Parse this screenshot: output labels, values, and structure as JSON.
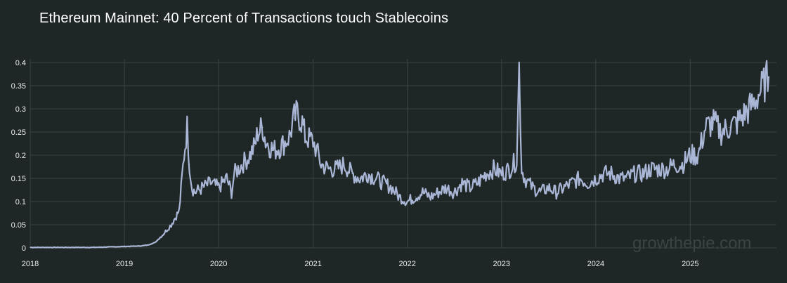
{
  "title": "Ethereum Mainnet: 40 Percent of Transactions touch Stablecoins",
  "watermark": "growthepie.com",
  "colors": {
    "background": "#1f2626",
    "line": "#a9b6d6",
    "grid": "#3a4443",
    "text": "#e8ecec"
  },
  "chart_data": {
    "type": "line",
    "title": "Ethereum Mainnet: 40 Percent of Transactions touch Stablecoins",
    "xlabel": "",
    "ylabel": "",
    "ylim": [
      0,
      0.4
    ],
    "grid": true,
    "y_ticks": [
      "0",
      "0.05",
      "0.1",
      "0.15",
      "0.2",
      "0.25",
      "0.3",
      "0.35",
      "0.4"
    ],
    "x_ticks": [
      "2018",
      "2019",
      "2020",
      "2021",
      "2022",
      "2023",
      "2024",
      "2025"
    ],
    "series": [
      {
        "x": [
          "2018-01",
          "2018-03",
          "2018-05",
          "2018-07",
          "2018-09",
          "2018-11",
          "2019-01",
          "2019-03",
          "2019-04",
          "2019-05",
          "2019-06",
          "2019-07",
          "2019-08",
          "2019-08-20",
          "2019-09-01",
          "2019-09-10",
          "2019-09-20",
          "2019-10",
          "2019-11",
          "2019-12",
          "2020-01",
          "2020-02",
          "2020-02-20",
          "2020-03",
          "2020-04",
          "2020-05",
          "2020-05-20",
          "2020-06",
          "2020-06-20",
          "2020-07",
          "2020-08",
          "2020-09",
          "2020-10",
          "2020-10-20",
          "2020-11",
          "2020-11-20",
          "2020-12",
          "2021-01",
          "2021-01-15",
          "2021-02",
          "2021-03",
          "2021-04",
          "2021-05",
          "2021-06",
          "2021-07",
          "2021-08",
          "2021-09",
          "2021-10",
          "2021-11",
          "2021-12",
          "2022-01",
          "2022-02",
          "2022-03",
          "2022-04",
          "2022-05",
          "2022-06",
          "2022-07",
          "2022-08",
          "2022-09",
          "2022-10",
          "2022-11",
          "2022-12",
          "2023-01",
          "2023-02",
          "2023-03",
          "2023-03-10",
          "2023-03-20",
          "2023-04",
          "2023-05",
          "2023-06",
          "2023-07",
          "2023-08",
          "2023-09",
          "2023-10",
          "2023-11",
          "2023-12",
          "2024-01",
          "2024-02",
          "2024-03",
          "2024-04",
          "2024-05",
          "2024-06",
          "2024-07",
          "2024-08",
          "2024-09",
          "2024-10",
          "2024-11",
          "2024-12",
          "2025-01",
          "2025-02",
          "2025-03",
          "2025-04",
          "2025-05",
          "2025-06",
          "2025-07",
          "2025-08",
          "2025-09",
          "2025-10",
          "2025-11"
        ],
        "values": [
          0.001,
          0.001,
          0.001,
          0.001,
          0.001,
          0.002,
          0.003,
          0.004,
          0.006,
          0.012,
          0.03,
          0.05,
          0.08,
          0.2,
          0.26,
          0.18,
          0.13,
          0.12,
          0.13,
          0.14,
          0.13,
          0.15,
          0.12,
          0.16,
          0.18,
          0.2,
          0.22,
          0.25,
          0.26,
          0.23,
          0.21,
          0.22,
          0.24,
          0.28,
          0.29,
          0.27,
          0.24,
          0.23,
          0.21,
          0.18,
          0.17,
          0.17,
          0.18,
          0.16,
          0.15,
          0.16,
          0.15,
          0.14,
          0.13,
          0.11,
          0.1,
          0.11,
          0.12,
          0.11,
          0.12,
          0.13,
          0.12,
          0.14,
          0.13,
          0.14,
          0.16,
          0.17,
          0.16,
          0.17,
          0.19,
          0.39,
          0.17,
          0.15,
          0.13,
          0.12,
          0.13,
          0.12,
          0.13,
          0.14,
          0.15,
          0.14,
          0.15,
          0.16,
          0.16,
          0.15,
          0.15,
          0.16,
          0.16,
          0.17,
          0.17,
          0.17,
          0.18,
          0.18,
          0.2,
          0.2,
          0.26,
          0.27,
          0.25,
          0.26,
          0.27,
          0.29,
          0.31,
          0.34,
          0.37
        ]
      }
    ]
  }
}
